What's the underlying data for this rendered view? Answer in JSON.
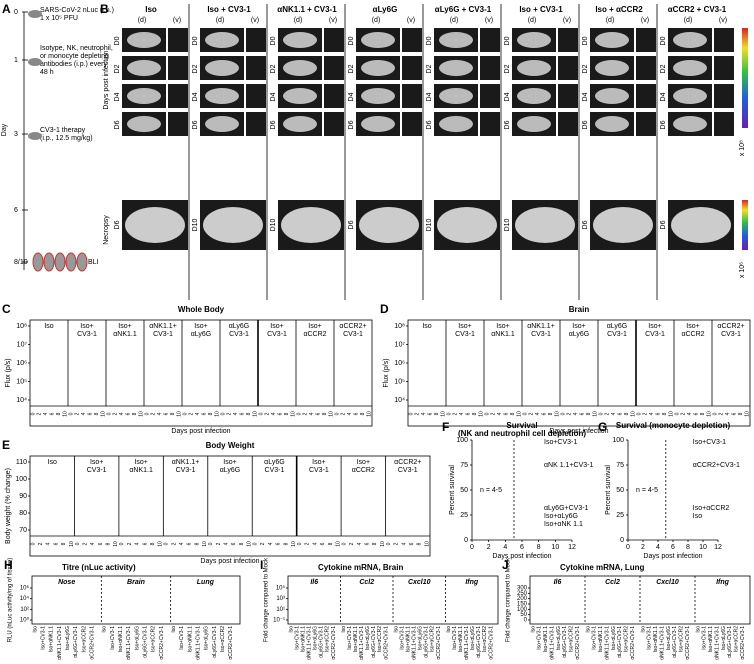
{
  "panelA": {
    "letter": "A",
    "lines": [
      "SARS-CoV-2 nLuc (i.n.)",
      "1 x 10⁵ PFU",
      "Isotype, NK, neutrophil,",
      "or monocyte depleting",
      "antibodies (i.p.) every",
      "48 h",
      "CV3-1 therapy",
      "(i.p., 12.5 mg/kg)"
    ],
    "axis": "Day",
    "days": [
      "0",
      "1",
      "3",
      "6",
      "8/10"
    ],
    "bli": "BLI"
  },
  "panelB": {
    "letter": "B",
    "groups": [
      {
        "name": "Iso",
        "necropsy": "D6"
      },
      {
        "name": "Iso + CV3-1",
        "necropsy": "D10"
      },
      {
        "name": "αNK1.1 + CV3-1",
        "necropsy": "D10"
      },
      {
        "name": "αLy6G",
        "necropsy": "D6"
      },
      {
        "name": "αLy6G + CV3-1",
        "necropsy": "D10"
      },
      {
        "name": "Iso + CV3-1",
        "necropsy": "D10"
      },
      {
        "name": "Iso + αCCR2",
        "necropsy": "D6"
      },
      {
        "name": "αCCR2 + CV3-1",
        "necropsy": "D6"
      }
    ],
    "views": [
      "(d)",
      "(v)"
    ],
    "days": [
      "D0",
      "D2",
      "D4",
      "D6"
    ],
    "rowlabel": "Days post infection",
    "necropsy": "Necropsy",
    "scale1": "x 10⁸",
    "scale2": "x 10⁶"
  },
  "panelC": {
    "letter": "C",
    "title": "Whole Body",
    "ylabel": "Flux (p/s)",
    "xlabel": "Days post infection",
    "yticks": [
      "10⁴",
      "10⁵",
      "10⁶",
      "10⁷",
      "10⁸"
    ],
    "xticks": [
      "0",
      "2",
      "4",
      "6",
      "8",
      "10"
    ]
  },
  "panelD": {
    "letter": "D",
    "title": "Brain",
    "ylabel": "Flux (p/s)",
    "xlabel": "Days post infection",
    "yticks": [
      "10⁴",
      "10⁵",
      "10⁶",
      "10⁷",
      "10⁸"
    ],
    "xticks": [
      "0",
      "2",
      "4",
      "6",
      "8",
      "10"
    ]
  },
  "panelE": {
    "letter": "E",
    "title": "Body Weight",
    "ylabel": "Body weight (% change)",
    "xlabel": "Days post infection",
    "yticks": [
      "70",
      "80",
      "90",
      "100",
      "110"
    ],
    "xticks": [
      "0",
      "2",
      "4",
      "6",
      "8",
      "10"
    ]
  },
  "groups": [
    {
      "lines": [
        "Iso"
      ],
      "color": "#000"
    },
    {
      "lines": [
        "Iso+",
        "CV3-1"
      ],
      "color": "#6a2c91"
    },
    {
      "lines": [
        "Iso+",
        "αNK1.1"
      ],
      "color": "#000"
    },
    {
      "lines": [
        "αNK1.1+",
        "CV3-1"
      ],
      "color": "#000"
    },
    {
      "lines": [
        "Iso+",
        "αLy6G"
      ],
      "color": "#000"
    },
    {
      "lines": [
        "αLy6G",
        "CV3-1"
      ],
      "color": "#000"
    },
    {
      "lines": [
        "Iso+",
        "CV3-1"
      ],
      "color": "#d0202a"
    },
    {
      "lines": [
        "Iso+",
        "αCCR2"
      ],
      "color": "#000"
    },
    {
      "lines": [
        "αCCR2+",
        "CV3-1"
      ],
      "color": "#000"
    }
  ],
  "panelF": {
    "letter": "F",
    "title": "Survival",
    "subtitle": "(NK and neutrophil cell depletion)",
    "ylabel": "Percent survival",
    "xlabel": "Days post infection",
    "yticks": [
      "0",
      "25",
      "50",
      "75",
      "100"
    ],
    "xticks": [
      "0",
      "2",
      "4",
      "6",
      "8",
      "10",
      "12"
    ],
    "note": "n = 4-5",
    "legend": [
      {
        "text": "Iso+CV3-1",
        "color": "#6a2c91"
      },
      {
        "text": "αNK 1.1+CV3-1",
        "color": "#000"
      },
      {
        "text": "αLy6G+CV3-1",
        "color": "#000"
      },
      {
        "text": "Iso+αLy6G",
        "color": "#000"
      },
      {
        "text": "Iso+αNK 1.1",
        "color": "#000"
      }
    ]
  },
  "panelG": {
    "letter": "G",
    "title": "Survival (monocyte depletion)",
    "ylabel": "Percent survival",
    "xlabel": "Days post infection",
    "yticks": [
      "0",
      "25",
      "50",
      "75",
      "100"
    ],
    "xticks": [
      "0",
      "2",
      "4",
      "6",
      "8",
      "10",
      "12"
    ],
    "note": "n = 4-5",
    "legend": [
      {
        "text": "Iso+CV3-1",
        "color": "#d0202a"
      },
      {
        "text": "αCCR2+CV3-1",
        "color": "#000"
      },
      {
        "text": "Iso+αCCR2",
        "color": "#000"
      },
      {
        "text": "Iso",
        "color": "#000"
      }
    ]
  },
  "panelH": {
    "letter": "H",
    "title": "Titre (nLuc activity)",
    "ylabel": "RLU (nLuc activity/mg of tissue)",
    "sections": [
      "Nose",
      "Brain",
      "Lung"
    ],
    "yticks": [
      "10⁰",
      "10²",
      "10⁴",
      "10⁶"
    ]
  },
  "panelI": {
    "letter": "I",
    "title": "Cytokine mRNA, Brain",
    "ylabel": "Fold change compared to Mock",
    "sections": [
      "Il6",
      "Ccl2",
      "Cxcl10",
      "Ifng"
    ],
    "yticks": [
      "10⁻¹",
      "10¹",
      "10³",
      "10⁵"
    ]
  },
  "panelJ": {
    "letter": "J",
    "title": "Cytokine mRNA, Lung",
    "ylabel": "Fold change compared to Mock",
    "sections": [
      "Il6",
      "Ccl2",
      "Cxcl10",
      "Ifng"
    ],
    "yticks": [
      "0",
      "50",
      "100",
      "150",
      "200",
      "250",
      "300"
    ]
  },
  "categories": [
    "Iso",
    "Iso+CV3-1",
    "Iso+αNK1.1",
    "αNK1.1+CV3-1",
    "Iso+αLy6G",
    "αLy6G+CV3-1",
    "Iso+αCCR2",
    "αCCR2+CV3-1"
  ]
}
